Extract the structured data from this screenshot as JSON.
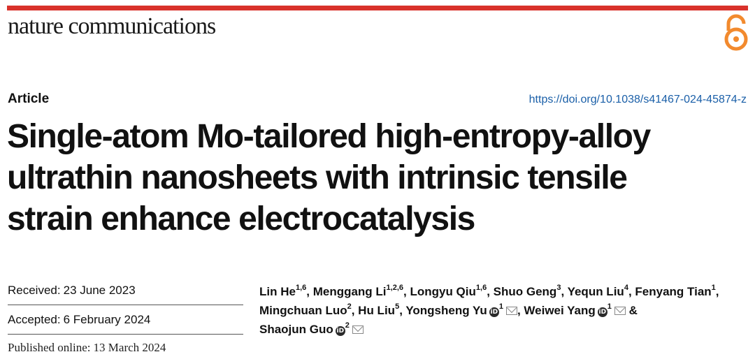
{
  "header": {
    "journal_name": "nature communications",
    "brand_color": "#d9322b",
    "oa_icon": "open-access-icon",
    "oa_color": "#f28a2e"
  },
  "article": {
    "type": "Article",
    "doi": "https://doi.org/10.1038/s41467-024-45874-z",
    "title_lines": [
      "Single-atom Mo-tailored high-entropy-alloy",
      "ultrathin nanosheets with intrinsic tensile",
      "strain enhance electrocatalysis"
    ]
  },
  "dates": {
    "received_label": "Received:",
    "received_value": "23 June 2023",
    "accepted_label": "Accepted:",
    "accepted_value": "6 February 2024",
    "published_label": "Published online:",
    "published_value": "13 March 2024"
  },
  "authors": [
    {
      "name": "Lin He",
      "aff": "1,6",
      "sep": ", "
    },
    {
      "name": "Menggang Li",
      "aff": "1,2,6",
      "sep": ", "
    },
    {
      "name": "Longyu Qiu",
      "aff": "1,6",
      "sep": ", "
    },
    {
      "name": "Shuo Geng",
      "aff": "3",
      "sep": ", "
    },
    {
      "name": "Yequn Liu",
      "aff": "4",
      "sep": ", "
    },
    {
      "name": "Fenyang Tian",
      "aff": "1",
      "sep": ","
    },
    {
      "name": "Mingchuan Luo",
      "aff": "2",
      "sep": ", "
    },
    {
      "name": "Hu Liu",
      "aff": "5",
      "sep": ", "
    },
    {
      "name": "Yongsheng Yu",
      "aff": "1",
      "sep": ", "
    },
    {
      "name": "Weiwei Yang",
      "aff": "1",
      "sep": " & "
    },
    {
      "name": "Shaojun Guo",
      "aff": "2",
      "sep": ""
    }
  ]
}
